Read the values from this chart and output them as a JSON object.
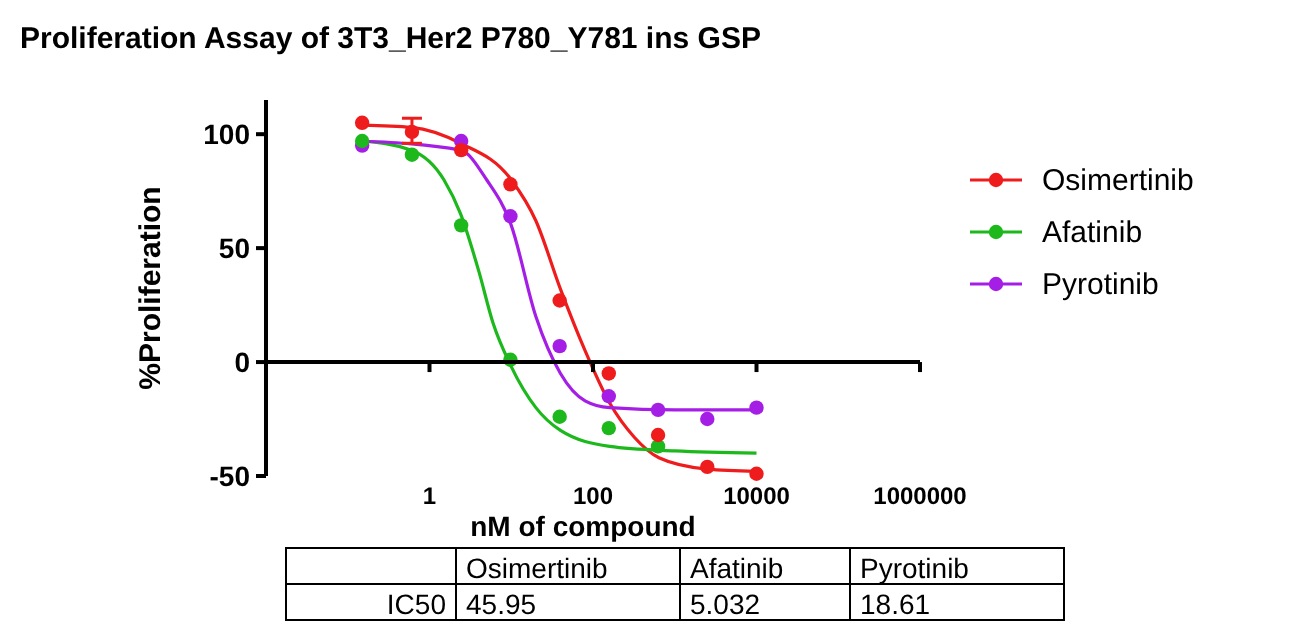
{
  "chart_data": [
    {
      "type": "scatter",
      "title": "Proliferation Assay of 3T3_Her2 P780_Y781 ins GSP",
      "xlabel": "nM of compound",
      "ylabel": "%Proliferation",
      "log": "x",
      "xlim": [
        0.01,
        1000000
      ],
      "xticks": [
        1,
        100,
        10000,
        1000000
      ],
      "ylim": [
        -50,
        115
      ],
      "yticks": [
        -50,
        0,
        50,
        100
      ],
      "legend": "right",
      "marker": "circle",
      "series": [
        {
          "name": "Osimertinib",
          "color": "#ee1c1c",
          "x": [
            0.15,
            0.61,
            2.44,
            9.77,
            39.1,
            156,
            625,
            2500,
            10000
          ],
          "values": [
            105,
            101,
            93,
            78,
            27,
            -5,
            -32,
            -46,
            -49
          ],
          "errors": [
            null,
            [
              96,
              107
            ],
            null,
            null,
            null,
            null,
            null,
            null,
            null
          ]
        },
        {
          "name": "Afatinib",
          "color": "#1cb81c",
          "x": [
            0.15,
            0.61,
            2.44,
            9.77,
            39.1,
            156,
            625
          ],
          "values": [
            97,
            91,
            60,
            1,
            -24,
            -29,
            -37
          ]
        },
        {
          "name": "Pyrotinib",
          "color": "#a51ee6",
          "x": [
            0.15,
            2.44,
            9.77,
            39.1,
            156,
            625,
            2500,
            10000
          ],
          "values": [
            95,
            97,
            64,
            7,
            -15,
            -21,
            -25,
            -20
          ]
        },
        {
          "type": "line",
          "marker": "none",
          "color": "#ee1c1c",
          "x": [
            0.15,
            0.6,
            2.4,
            10,
            20,
            40,
            80,
            160,
            320,
            640,
            2500,
            10000
          ],
          "values": [
            104,
            103,
            96,
            80,
            62,
            32,
            5,
            -18,
            -33,
            -42,
            -47,
            -48
          ]
        },
        {
          "type": "line",
          "marker": "none",
          "color": "#1cb81c",
          "x": [
            0.15,
            0.6,
            1.5,
            2.4,
            4,
            6,
            10,
            20,
            40,
            160,
            1000,
            10000
          ],
          "values": [
            97,
            93,
            80,
            65,
            40,
            17,
            -2,
            -20,
            -30,
            -37,
            -39,
            -40
          ]
        },
        {
          "type": "line",
          "marker": "none",
          "color": "#a51ee6",
          "x": [
            0.15,
            2.4,
            5,
            10,
            20,
            40,
            80,
            160,
            1000,
            10000
          ],
          "values": [
            97,
            93,
            80,
            60,
            20,
            -5,
            -17,
            -20,
            -21,
            -21
          ]
        }
      ]
    },
    {
      "type": "other",
      "annotations": [
        "Osimertinib",
        "Afatinib",
        "Pyrotinib",
        "IC50",
        "45.95",
        "5.032",
        "18.61"
      ]
    }
  ]
}
